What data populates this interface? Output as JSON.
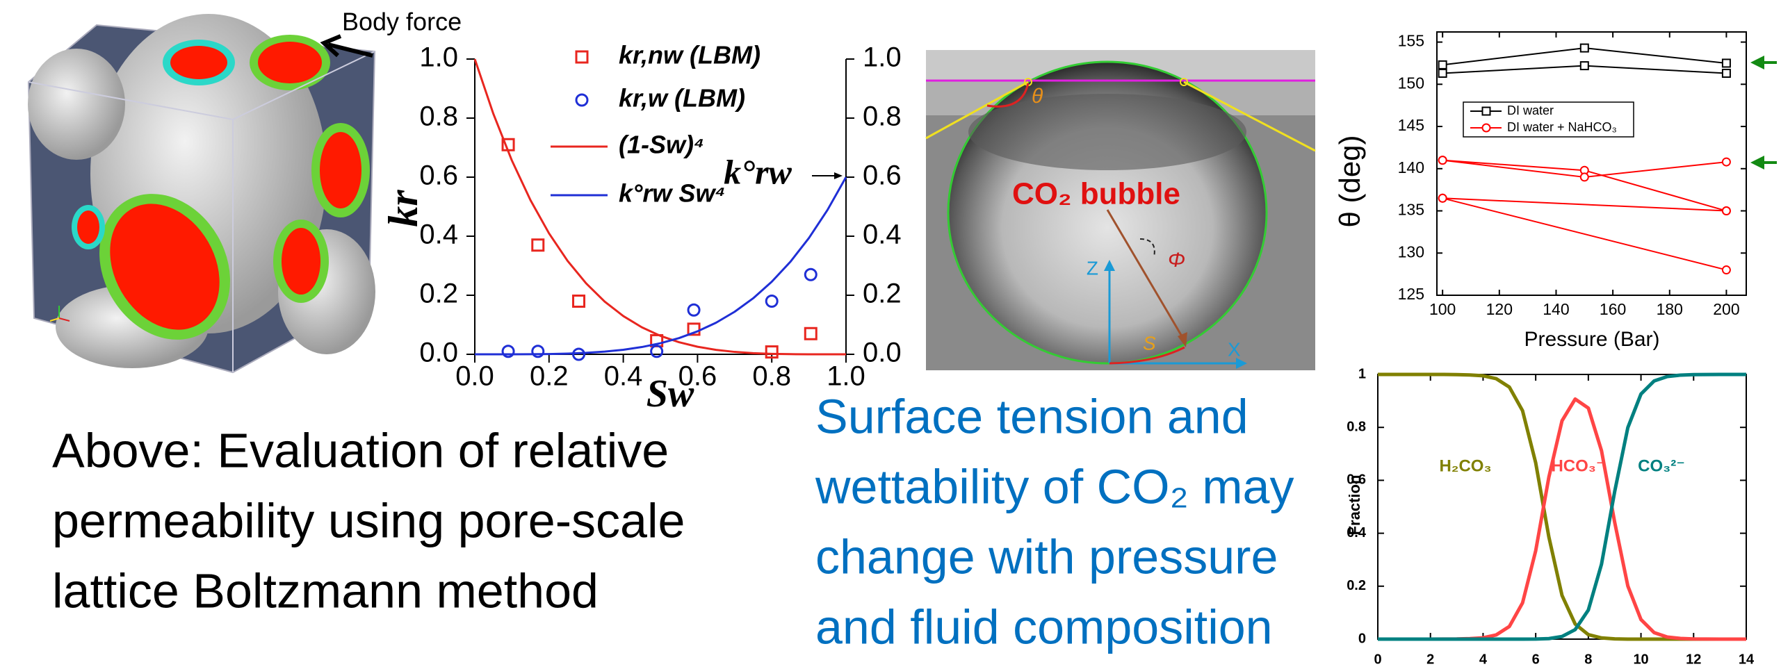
{
  "figure": {
    "body_force": "Body force"
  },
  "photo": {
    "theta": "θ",
    "bubble": "CO₂ bubble",
    "phi": "Φ",
    "z": "Z",
    "x": "X",
    "s": "S"
  },
  "captions": {
    "left": [
      "Above: Evaluation of relative",
      "permeability using pore-scale",
      "lattice Boltzmann method"
    ],
    "right": [
      "Surface tension and",
      "wettability of CO₂ may",
      "change with pressure",
      "and fluid composition"
    ]
  },
  "chart_data": [
    {
      "type": "scatter",
      "xlabel": "Sw",
      "ylabel": "kr",
      "annotation": "k°rw",
      "xlim": [
        0,
        1
      ],
      "ylim": [
        0,
        1
      ],
      "y2lim": [
        0,
        1
      ],
      "xticks": [
        {
          "value": 0,
          "label": "0.0"
        },
        {
          "value": 0.2,
          "label": "0.2"
        },
        {
          "value": 0.4,
          "label": "0.4"
        },
        {
          "value": 0.6,
          "label": "0.6"
        },
        {
          "value": 0.8,
          "label": "0.8"
        },
        {
          "value": 1,
          "label": "1.0"
        }
      ],
      "yticks": [
        {
          "value": 0,
          "label": "0.0"
        },
        {
          "value": 0.2,
          "label": "0.2"
        },
        {
          "value": 0.4,
          "label": "0.4"
        },
        {
          "value": 0.6,
          "label": "0.6"
        },
        {
          "value": 0.8,
          "label": "0.8"
        },
        {
          "value": 1,
          "label": "1.0"
        }
      ],
      "y2ticks": [
        {
          "value": 0,
          "label": "0.0"
        },
        {
          "value": 0.2,
          "label": "0.2"
        },
        {
          "value": 0.4,
          "label": "0.4"
        },
        {
          "value": 0.6,
          "label": "0.6"
        },
        {
          "value": 0.8,
          "label": "0.8"
        },
        {
          "value": 1,
          "label": "1.0"
        }
      ],
      "series": [
        {
          "name": "kr,nw (LBM)",
          "color": "#e8261f",
          "marker": "square",
          "line": false,
          "x": [
            0.09,
            0.17,
            0.28,
            0.49,
            0.59,
            0.8,
            0.905
          ],
          "values": [
            0.71,
            0.37,
            0.18,
            0.046,
            0.085,
            0.008,
            0.07
          ]
        },
        {
          "name": "kr,w (LBM)",
          "color": "#1f2fd6",
          "marker": "circle",
          "line": false,
          "x": [
            0.09,
            0.17,
            0.28,
            0.49,
            0.59,
            0.8,
            0.905
          ],
          "values": [
            0.01,
            0.01,
            0.0,
            0.01,
            0.15,
            0.18,
            0.27
          ]
        },
        {
          "name": "(1-Sw)⁴",
          "color": "#e8261f",
          "line": true,
          "x": [
            0,
            0.05,
            0.1,
            0.15,
            0.2,
            0.25,
            0.3,
            0.35,
            0.4,
            0.45,
            0.5,
            0.55,
            0.6,
            0.65,
            0.7,
            0.75,
            0.8,
            0.85,
            0.9,
            0.95,
            1
          ],
          "values": [
            1,
            0.8145,
            0.6561,
            0.522,
            0.4096,
            0.3164,
            0.2401,
            0.1785,
            0.1296,
            0.0915,
            0.0625,
            0.041,
            0.0256,
            0.015,
            0.0081,
            0.0039,
            0.0016,
            0.0005,
            0.0001,
            0,
            0
          ]
        },
        {
          "name": "k°rw Sw⁴",
          "color": "#1f2fd6",
          "line": true,
          "x": [
            0,
            0.05,
            0.1,
            0.15,
            0.2,
            0.25,
            0.3,
            0.35,
            0.4,
            0.45,
            0.5,
            0.55,
            0.6,
            0.65,
            0.7,
            0.75,
            0.8,
            0.85,
            0.9,
            0.95,
            1
          ],
          "values": [
            0,
            0,
            0.0001,
            0.0003,
            0.001,
            0.0023,
            0.0049,
            0.009,
            0.0154,
            0.0246,
            0.0375,
            0.0549,
            0.0778,
            0.1071,
            0.1441,
            0.1898,
            0.2458,
            0.3132,
            0.3937,
            0.4887,
            0.6
          ]
        }
      ]
    },
    {
      "type": "line",
      "xlabel": "Pressure (Bar)",
      "ylabel": "θ (deg)",
      "xlim": [
        98,
        207
      ],
      "ylim": [
        125,
        156.2
      ],
      "xticks": [
        100,
        120,
        140,
        160,
        180,
        200
      ],
      "yticks": [
        125,
        130,
        135,
        140,
        145,
        150,
        155
      ],
      "series": [
        {
          "name": "DI water",
          "color": "#000000",
          "marker": "square",
          "line": true,
          "x": [
            100,
            150,
            200
          ],
          "values": [
            152.3,
            154.3,
            152.5
          ]
        },
        {
          "color": "#000000",
          "marker": "square",
          "line": true,
          "x": [
            100,
            150,
            200
          ],
          "values": [
            151.3,
            152.2,
            151.3
          ]
        },
        {
          "name": "DI water + NaHCO₃",
          "color": "#ff0000",
          "marker": "circle",
          "line": true,
          "x": [
            100,
            150,
            200
          ],
          "values": [
            141,
            139.8,
            135
          ]
        },
        {
          "color": "#ff0000",
          "marker": "circle",
          "line": true,
          "x": [
            100,
            150,
            200
          ],
          "values": [
            141,
            139,
            140.8
          ]
        },
        {
          "color": "#ff0000",
          "marker": "circle",
          "line": true,
          "x": [
            100,
            200
          ],
          "values": [
            136.5,
            135
          ]
        },
        {
          "color": "#ff0000",
          "marker": "circle",
          "line": true,
          "x": [
            100,
            200
          ],
          "values": [
            136.5,
            128
          ]
        }
      ]
    },
    {
      "type": "line",
      "ylabel": "Fraction",
      "xlim": [
        0,
        14
      ],
      "ylim": [
        0,
        1
      ],
      "xticks": [
        0,
        2,
        4,
        6,
        8,
        10,
        12,
        14
      ],
      "yticks": [
        0,
        0.2,
        0.4,
        0.6,
        0.8,
        1
      ],
      "x": [
        0,
        0.5,
        1,
        1.5,
        2,
        2.5,
        3,
        3.5,
        4,
        4.5,
        5,
        5.5,
        6,
        6.5,
        7,
        7.5,
        8,
        8.5,
        9,
        9.5,
        10,
        10.5,
        11,
        11.5,
        12,
        12.5,
        13,
        13.5,
        14
      ],
      "series": [
        {
          "name": "H₂CO₃",
          "color": "#808000",
          "line": true,
          "values": [
            1,
            1,
            1,
            1,
            1,
            1,
            0.9995,
            0.998,
            0.995,
            0.984,
            0.952,
            0.863,
            0.666,
            0.386,
            0.165,
            0.057,
            0.017,
            0.0045,
            0.0009,
            0.0001,
            0,
            0,
            0,
            0,
            0,
            0,
            0,
            0,
            0
          ]
        },
        {
          "name": "HCO₃⁻",
          "color": "#ff4545",
          "line": true,
          "values": [
            0,
            0,
            0,
            0,
            0,
            0.0002,
            0.0005,
            0.002,
            0.005,
            0.016,
            0.048,
            0.137,
            0.334,
            0.612,
            0.825,
            0.907,
            0.873,
            0.712,
            0.442,
            0.201,
            0.074,
            0.0245,
            0.0079,
            0.0025,
            0.0008,
            0.0003,
            0.0001,
            0,
            0
          ]
        },
        {
          "name": "CO₃²⁻",
          "color": "#008080",
          "line": true,
          "values": [
            0,
            0,
            0,
            0,
            0,
            0,
            0,
            0,
            0,
            0,
            0,
            0,
            0.0004,
            0.002,
            0.01,
            0.036,
            0.11,
            0.283,
            0.557,
            0.799,
            0.926,
            0.9755,
            0.992,
            0.9975,
            0.9992,
            0.9997,
            0.9999,
            1,
            1
          ]
        }
      ]
    }
  ]
}
